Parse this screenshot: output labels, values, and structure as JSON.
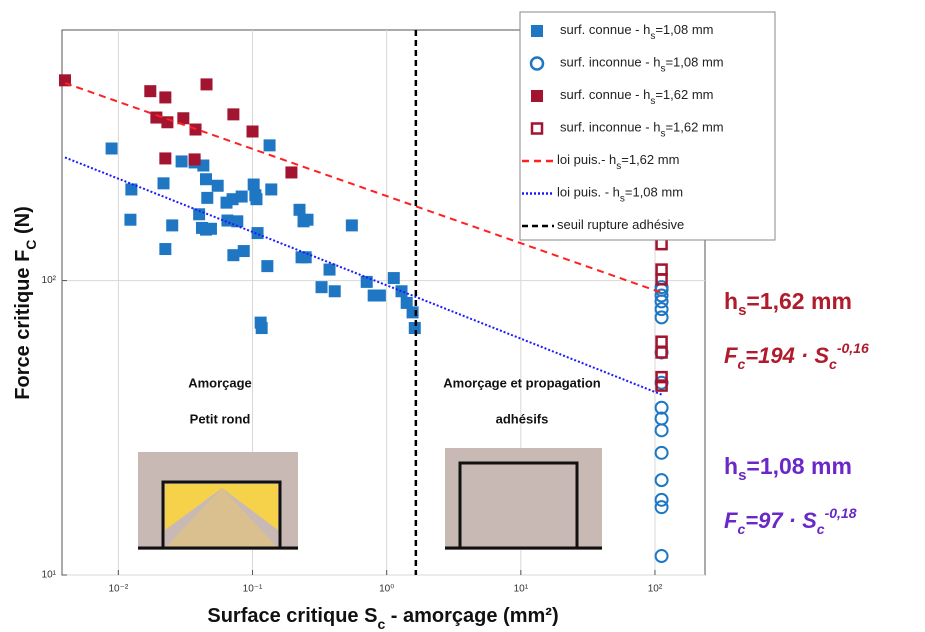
{
  "chart_data": {
    "type": "scatter",
    "x_label": {
      "text": "Surface critique S",
      "sub": "c",
      "end": " - amorçage (mm²)"
    },
    "y_label": {
      "text": "Force critique F",
      "sub": "C",
      "end": " (N)"
    },
    "log_x": true,
    "log_y": true,
    "grid": true,
    "legend": "upper right",
    "xlim": [
      0.0038,
      236
    ],
    "ylim": [
      10,
      710
    ],
    "xticks": [
      {
        "value": 0.01,
        "label": "10⁻²"
      },
      {
        "value": 0.1,
        "label": "10⁻¹"
      },
      {
        "value": 1,
        "label": "10⁰"
      },
      {
        "value": 10,
        "label": "10¹"
      },
      {
        "value": 100,
        "label": "10²"
      }
    ],
    "yticks": [
      {
        "value": 10,
        "label": "10¹"
      },
      {
        "value": 100,
        "label": "10²"
      }
    ],
    "series": [
      {
        "name": "surf. connue - h",
        "name_sub": "s",
        "name_end": "=1,08 mm",
        "marker": "square",
        "color": "#1f77c4",
        "x": [
          0.0089,
          0.0125,
          0.0123,
          0.0217,
          0.0224,
          0.0252,
          0.0296,
          0.037,
          0.043,
          0.045,
          0.04,
          0.045,
          0.046,
          0.042,
          0.049,
          0.055,
          0.064,
          0.065,
          0.071,
          0.083,
          0.077,
          0.072,
          0.086,
          0.102,
          0.107,
          0.109,
          0.115,
          0.117,
          0.129,
          0.134,
          0.138,
          0.105,
          0.224,
          0.232,
          0.249,
          0.24,
          0.257,
          0.375,
          0.327,
          0.41,
          0.55,
          0.71,
          0.8,
          0.89,
          1.13,
          1.29,
          1.41,
          1.62,
          1.56
        ],
        "values": [
          281,
          204,
          161,
          214,
          128,
          154,
          254,
          252,
          246,
          221,
          168,
          149,
          191,
          151,
          150,
          210,
          184,
          160,
          189,
          193,
          159,
          122,
          126,
          212,
          189,
          145,
          72,
          69,
          112,
          288,
          204,
          195,
          174,
          120,
          120,
          159,
          161,
          109,
          95,
          92,
          154,
          99,
          89,
          89,
          102,
          92,
          84,
          69,
          78
        ]
      },
      {
        "name": "surf. inconnue - h",
        "name_sub": "s",
        "name_end": "=1,08 mm",
        "marker": "circle",
        "color": "#1f77c4",
        "x": [
          112,
          112,
          112,
          112,
          112,
          112,
          112,
          112,
          112,
          112,
          112,
          112,
          112,
          112,
          112,
          112
        ],
        "values": [
          95,
          93,
          89,
          85,
          80,
          75,
          57,
          45,
          37,
          34,
          31,
          26,
          21,
          18,
          17,
          11.6
        ]
      },
      {
        "name": "surf. connue - h",
        "name_sub": "s",
        "name_end": "=1,62 mm",
        "marker": "square",
        "color": "#a2142f",
        "x": [
          0.004,
          0.0173,
          0.0224,
          0.0192,
          0.0232,
          0.0305,
          0.0376,
          0.0454,
          0.072,
          0.1,
          0.037,
          0.195,
          0.0224
        ],
        "values": [
          479,
          440,
          419,
          358,
          345,
          356,
          326,
          464,
          367,
          321,
          258,
          233,
          260
        ]
      },
      {
        "name": "surf. inconnue - h",
        "name_sub": "s",
        "name_end": "=1,62 mm",
        "marker": "square-open",
        "color": "#a2142f",
        "x": [
          112,
          112,
          112,
          112,
          112,
          112,
          112
        ],
        "values": [
          133,
          109,
          101,
          62,
          57,
          47,
          44
        ]
      },
      {
        "name": "loi puis.- h",
        "name_sub": "s",
        "name_end": "=1,62 mm",
        "marker": "dashed",
        "color": "#ff2020",
        "x": [
          0.004,
          112
        ],
        "values": [
          469,
          91
        ]
      },
      {
        "name": "loi puis. - h",
        "name_sub": "s",
        "name_end": "=1,08 mm",
        "marker": "dotted",
        "color": "#1a1aff",
        "x": [
          0.004,
          112
        ],
        "values": [
          262,
          41
        ]
      },
      {
        "name": "seuil rupture adhésive",
        "marker": "vline",
        "color": "#000000",
        "x": [
          1.65
        ]
      }
    ],
    "annotations": [
      {
        "text": "Amorçage"
      },
      {
        "text": "Petit rond"
      },
      {
        "text": "Amorçage et propagation"
      },
      {
        "text": "adhésifs"
      }
    ],
    "fits": [
      {
        "h": "h",
        "h_sub": "s",
        "h_end": "=1,62 mm",
        "f": "F",
        "f_sub": "c",
        "f_mid": "=194 · S",
        "s_sub": "c",
        "sup": "-0,16",
        "color": "#b01c2c"
      },
      {
        "h": "h",
        "h_sub": "s",
        "h_end": "=1,08 mm",
        "f": "F",
        "f_sub": "c",
        "f_mid": "=97 · S",
        "s_sub": "c",
        "sup": "-0,18",
        "color": "#6a28c8"
      }
    ]
  }
}
